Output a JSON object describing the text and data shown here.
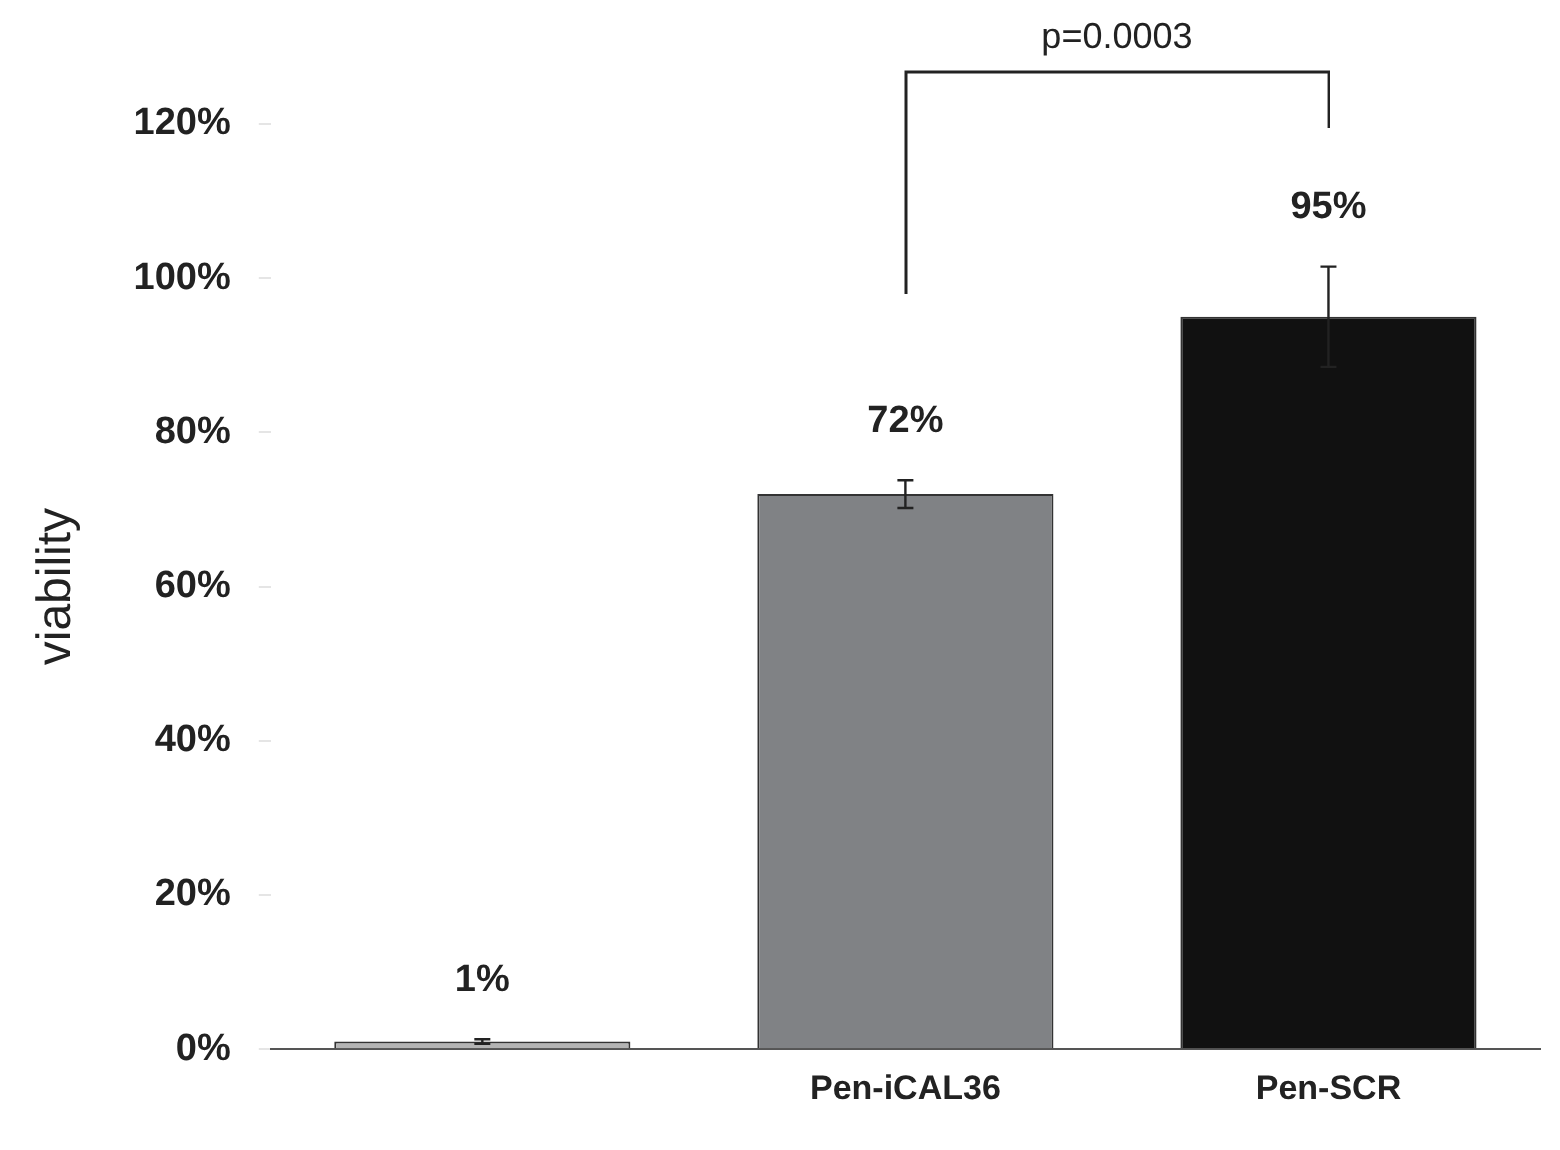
{
  "chart_data": {
    "type": "bar",
    "ylabel": "viability",
    "categories": [
      null,
      "Pen-iCAL36",
      "Pen-SCR"
    ],
    "values": [
      1,
      72,
      95
    ],
    "colors": [
      "#b4b4b4",
      "#808285",
      "#111111"
    ],
    "errors": [
      0.3,
      1.8,
      6.5
    ],
    "value_labels": [
      "1%",
      "72%",
      "95%"
    ],
    "ylim": [
      0,
      120
    ],
    "yticks": [
      {
        "value": 0,
        "label": "0%"
      },
      {
        "value": 20,
        "label": "20%"
      },
      {
        "value": 40,
        "label": "40%"
      },
      {
        "value": 60,
        "label": "60%"
      },
      {
        "value": 80,
        "label": "80%"
      },
      {
        "value": 100,
        "label": "100%"
      },
      {
        "value": 120,
        "label": "120%"
      }
    ],
    "annotations": [
      "p=0.0003"
    ],
    "grid": false,
    "legend": false
  }
}
